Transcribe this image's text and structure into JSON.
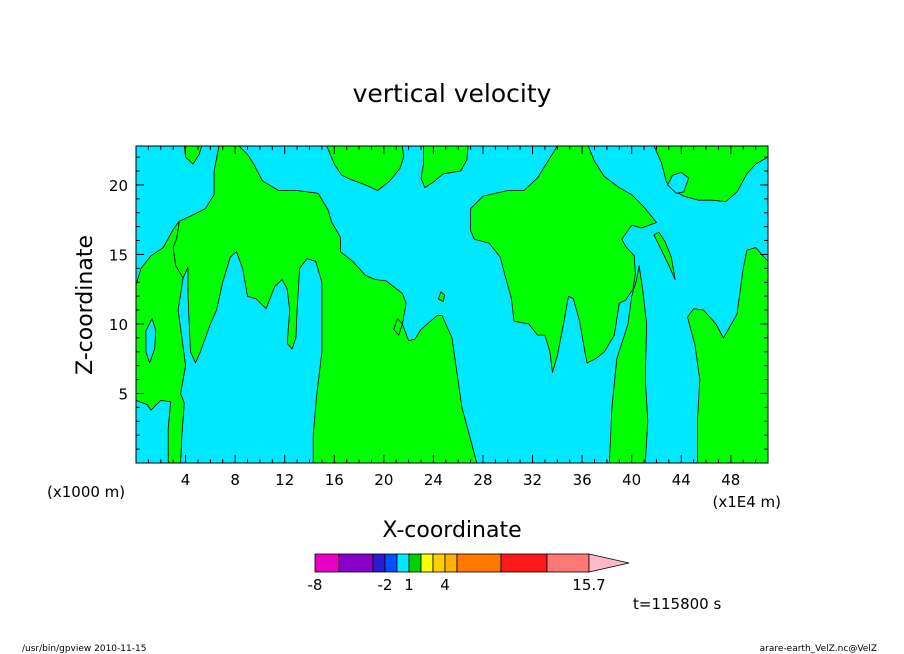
{
  "chart_data": {
    "type": "heatmap",
    "title": "vertical velocity",
    "xlabel": "X-coordinate",
    "ylabel": "Z-coordinate",
    "x_unit_left": "(x1000 m)",
    "x_unit_right": "(x1E4 m)",
    "xlim": [
      0,
      51
    ],
    "ylim": [
      0,
      22.8
    ],
    "x_ticks": [
      {
        "value": 4,
        "label": "4"
      },
      {
        "value": 8,
        "label": "8"
      },
      {
        "value": 12,
        "label": "12"
      },
      {
        "value": 16,
        "label": "16"
      },
      {
        "value": 20,
        "label": "20"
      },
      {
        "value": 24,
        "label": "24"
      },
      {
        "value": 28,
        "label": "28"
      },
      {
        "value": 32,
        "label": "32"
      },
      {
        "value": 36,
        "label": "36"
      },
      {
        "value": 40,
        "label": "40"
      },
      {
        "value": 44,
        "label": "44"
      },
      {
        "value": 48,
        "label": "48"
      }
    ],
    "y_ticks": [
      {
        "value": 5,
        "label": "5"
      },
      {
        "value": 10,
        "label": "10"
      },
      {
        "value": 15,
        "label": "15"
      },
      {
        "value": 20,
        "label": "20"
      }
    ],
    "background_color": "#00e8ff",
    "region_color": "#00ff00",
    "regions": [
      {
        "name": "left-edge",
        "points": [
          [
            0,
            12.8
          ],
          [
            0.4,
            14
          ],
          [
            1.2,
            14.9
          ],
          [
            2.2,
            15.5
          ],
          [
            3,
            16.8
          ],
          [
            3.5,
            17.4
          ],
          [
            3.3,
            16.2
          ],
          [
            3,
            15.5
          ],
          [
            3.2,
            14.2
          ],
          [
            3.8,
            13.3
          ],
          [
            3.4,
            11
          ],
          [
            3.7,
            9
          ],
          [
            4,
            7
          ],
          [
            3.6,
            5
          ],
          [
            3.9,
            4.3
          ],
          [
            3.7,
            2
          ],
          [
            3.6,
            0
          ],
          [
            2.6,
            0
          ],
          [
            2.6,
            2.5
          ],
          [
            2.8,
            4.4
          ],
          [
            2,
            4.5
          ],
          [
            1.2,
            3.8
          ],
          [
            0.9,
            4.2
          ],
          [
            0,
            4.5
          ]
        ]
      },
      {
        "name": "left-edge-hole",
        "hole": true,
        "points": [
          [
            1.1,
            7.2
          ],
          [
            1.5,
            8.2
          ],
          [
            1.6,
            9.5
          ],
          [
            1.3,
            10.4
          ],
          [
            0.8,
            9.5
          ],
          [
            0.8,
            8
          ]
        ]
      },
      {
        "name": "upper-left",
        "points": [
          [
            3.5,
            17.4
          ],
          [
            4.5,
            17.8
          ],
          [
            5.6,
            18.3
          ],
          [
            6.3,
            19.3
          ],
          [
            6.3,
            21
          ],
          [
            6.7,
            22.8
          ],
          [
            8.3,
            22.8
          ],
          [
            9,
            22.2
          ],
          [
            9.5,
            21.5
          ],
          [
            10.2,
            20.3
          ],
          [
            11.5,
            19.6
          ],
          [
            13,
            19.6
          ],
          [
            14.7,
            19.4
          ],
          [
            15.5,
            18.2
          ],
          [
            15.8,
            17.3
          ],
          [
            16.2,
            16.7
          ],
          [
            16.5,
            16.2
          ],
          [
            16.5,
            15.2
          ],
          [
            17.5,
            14.5
          ],
          [
            18.5,
            13.5
          ],
          [
            19.3,
            13.2
          ],
          [
            20.2,
            13.1
          ],
          [
            21.5,
            12.2
          ],
          [
            21.8,
            11.5
          ],
          [
            21.5,
            10
          ],
          [
            22,
            8.8
          ],
          [
            22.5,
            8.9
          ],
          [
            23,
            9.6
          ],
          [
            23.5,
            10
          ],
          [
            24.3,
            10.6
          ],
          [
            24.7,
            10.6
          ],
          [
            25.5,
            9
          ],
          [
            26.3,
            4
          ],
          [
            27.2,
            1
          ],
          [
            27.5,
            0
          ],
          [
            14.3,
            0
          ],
          [
            14.3,
            2
          ],
          [
            14.6,
            5
          ],
          [
            15,
            8
          ],
          [
            15,
            11
          ],
          [
            15,
            13
          ],
          [
            14.5,
            14.5
          ],
          [
            13.8,
            14.7
          ],
          [
            13.2,
            14
          ],
          [
            13,
            11
          ],
          [
            12.9,
            9
          ],
          [
            12.6,
            8.2
          ],
          [
            12.2,
            8.6
          ],
          [
            12.4,
            11
          ],
          [
            12.2,
            12.5
          ],
          [
            11.8,
            13.2
          ],
          [
            11.2,
            12.7
          ],
          [
            10.5,
            11.1
          ],
          [
            9.7,
            11.8
          ],
          [
            9,
            12
          ],
          [
            8.6,
            14
          ],
          [
            8.1,
            15.2
          ],
          [
            7.6,
            14.8
          ],
          [
            7,
            13
          ],
          [
            6.5,
            11
          ],
          [
            6,
            10
          ],
          [
            5.2,
            8
          ],
          [
            4.8,
            7.2
          ],
          [
            4.4,
            8
          ],
          [
            4.3,
            9.8
          ],
          [
            4.2,
            12
          ],
          [
            4.2,
            14.1
          ],
          [
            3.8,
            13.3
          ],
          [
            3.2,
            14.2
          ],
          [
            3,
            15.5
          ],
          [
            3.3,
            16.2
          ]
        ]
      },
      {
        "name": "small-blob-top-left",
        "points": [
          [
            3.9,
            22.8
          ],
          [
            5.3,
            22.8
          ],
          [
            5.1,
            22.2
          ],
          [
            4.6,
            21.5
          ],
          [
            4,
            22
          ]
        ]
      },
      {
        "name": "speck-center",
        "points": [
          [
            20.8,
            9.6
          ],
          [
            21.1,
            10.4
          ],
          [
            21.5,
            10
          ],
          [
            21.2,
            9.2
          ]
        ]
      },
      {
        "name": "speck-upper-center",
        "points": [
          [
            24.4,
            11.8
          ],
          [
            24.6,
            12.3
          ],
          [
            24.9,
            12.1
          ],
          [
            24.8,
            11.6
          ]
        ]
      },
      {
        "name": "upper-center-blob",
        "points": [
          [
            15.4,
            22.8
          ],
          [
            21.5,
            22.8
          ],
          [
            21.6,
            22
          ],
          [
            21.3,
            21.2
          ],
          [
            20.5,
            20.3
          ],
          [
            19.5,
            19.6
          ],
          [
            18.5,
            20
          ],
          [
            17.3,
            20.4
          ],
          [
            16.6,
            20.7
          ],
          [
            16,
            21.5
          ]
        ]
      },
      {
        "name": "upper-center-right-blob",
        "points": [
          [
            23.2,
            22.8
          ],
          [
            26.8,
            22.8
          ],
          [
            26.7,
            21.8
          ],
          [
            26.2,
            21
          ],
          [
            24.8,
            20.8
          ],
          [
            24,
            20.2
          ],
          [
            23.3,
            19.8
          ],
          [
            23,
            20.5
          ],
          [
            23.2,
            21.5
          ]
        ]
      },
      {
        "name": "mid-right-blob",
        "points": [
          [
            27,
            18.3
          ],
          [
            28,
            19.2
          ],
          [
            30,
            19.6
          ],
          [
            31.3,
            19.6
          ],
          [
            32.4,
            20.5
          ],
          [
            34,
            22.8
          ],
          [
            36.5,
            22.8
          ],
          [
            37,
            21.7
          ],
          [
            37.8,
            20.6
          ],
          [
            39,
            19.8
          ],
          [
            40,
            19.3
          ],
          [
            41,
            18.4
          ],
          [
            42,
            17.3
          ],
          [
            40.8,
            16.9
          ],
          [
            40,
            17.1
          ],
          [
            39.2,
            16.1
          ],
          [
            39.5,
            15.6
          ],
          [
            40.2,
            14.9
          ],
          [
            40.3,
            13.6
          ],
          [
            40.1,
            12.5
          ],
          [
            39.5,
            11.7
          ],
          [
            39,
            11.5
          ],
          [
            38.6,
            9.2
          ],
          [
            37.8,
            8
          ],
          [
            37.1,
            7.5
          ],
          [
            36.4,
            7.2
          ],
          [
            36.2,
            8.1
          ],
          [
            35.8,
            10.2
          ],
          [
            35.3,
            11.8
          ],
          [
            34.9,
            12
          ],
          [
            34.5,
            10
          ],
          [
            34,
            7.7
          ],
          [
            33.6,
            6.5
          ],
          [
            33.4,
            8
          ],
          [
            33,
            9.2
          ],
          [
            32.4,
            9.2
          ],
          [
            31.7,
            10
          ],
          [
            30.5,
            10.2
          ],
          [
            30.3,
            11.8
          ],
          [
            29.8,
            13.4
          ],
          [
            29.4,
            14.8
          ],
          [
            28.5,
            15.8
          ],
          [
            27.3,
            16.1
          ],
          [
            27,
            16.7
          ]
        ]
      },
      {
        "name": "right-column",
        "points": [
          [
            38.2,
            0
          ],
          [
            38.4,
            4
          ],
          [
            38.8,
            7.5
          ],
          [
            39.7,
            10
          ],
          [
            40,
            12
          ],
          [
            40.4,
            13.2
          ],
          [
            40.6,
            14.2
          ],
          [
            40.9,
            12.4
          ],
          [
            41.2,
            10
          ],
          [
            41.1,
            6
          ],
          [
            41.3,
            3
          ],
          [
            41.1,
            0
          ]
        ]
      },
      {
        "name": "far-right",
        "points": [
          [
            45.3,
            0
          ],
          [
            45.3,
            3
          ],
          [
            45.5,
            6
          ],
          [
            45.1,
            8.5
          ],
          [
            44.5,
            10.5
          ],
          [
            45,
            11.1
          ],
          [
            45.8,
            11
          ],
          [
            46.8,
            10
          ],
          [
            47.4,
            9
          ],
          [
            48.5,
            10.7
          ],
          [
            49,
            14
          ],
          [
            49.3,
            15.3
          ],
          [
            50,
            15.5
          ],
          [
            51,
            14.5
          ],
          [
            51,
            0
          ]
        ]
      },
      {
        "name": "small-blob-right",
        "points": [
          [
            41.8,
            16.4
          ],
          [
            42.3,
            15.5
          ],
          [
            43,
            14.2
          ],
          [
            43.5,
            13.2
          ],
          [
            43.2,
            14.8
          ],
          [
            42.7,
            15.9
          ],
          [
            42.2,
            16.6
          ]
        ]
      },
      {
        "name": "upper-right-blob",
        "points": [
          [
            41.8,
            22.8
          ],
          [
            51,
            22.8
          ],
          [
            51,
            22
          ],
          [
            50,
            21.5
          ],
          [
            49.3,
            20.8
          ],
          [
            48.5,
            19.5
          ],
          [
            47.6,
            18.8
          ],
          [
            46.5,
            18.9
          ],
          [
            45.4,
            18.9
          ],
          [
            44.2,
            19.2
          ],
          [
            43.4,
            19.6
          ],
          [
            42.8,
            20.2
          ],
          [
            42.4,
            21.6
          ]
        ]
      },
      {
        "name": "upper-right-hole",
        "hole": true,
        "points": [
          [
            42.9,
            20
          ],
          [
            43.3,
            20.7
          ],
          [
            44,
            20.9
          ],
          [
            44.6,
            20.5
          ],
          [
            44.2,
            19.5
          ],
          [
            43.6,
            19.4
          ]
        ]
      }
    ],
    "colorbar": {
      "segments": [
        {
          "color": "#e800c8"
        },
        {
          "color": "#8800c8"
        },
        {
          "color": "#2a1ad0"
        },
        {
          "color": "#0050ff"
        },
        {
          "color": "#00e8ff"
        },
        {
          "color": "#00d000"
        },
        {
          "color": "#ffff00"
        },
        {
          "color": "#ffd000"
        },
        {
          "color": "#ffb000"
        },
        {
          "color": "#ff7800"
        },
        {
          "color": "#ff1818"
        },
        {
          "color": "#ff7878"
        }
      ],
      "triangle_color": "#ffb8c8",
      "labels": [
        {
          "text": "-8",
          "at_segment": 0
        },
        {
          "text": "-2",
          "at_segment": 3
        },
        {
          "text": "1",
          "at_segment": 5
        },
        {
          "text": "4",
          "at_segment": 8
        },
        {
          "text": "15.7",
          "at_segment": 12
        }
      ]
    }
  },
  "time_label": "t=115800 s",
  "footer_left": "/usr/bin/gpview   2010-11-15",
  "footer_right": "arare-earth_VelZ.nc@VelZ"
}
